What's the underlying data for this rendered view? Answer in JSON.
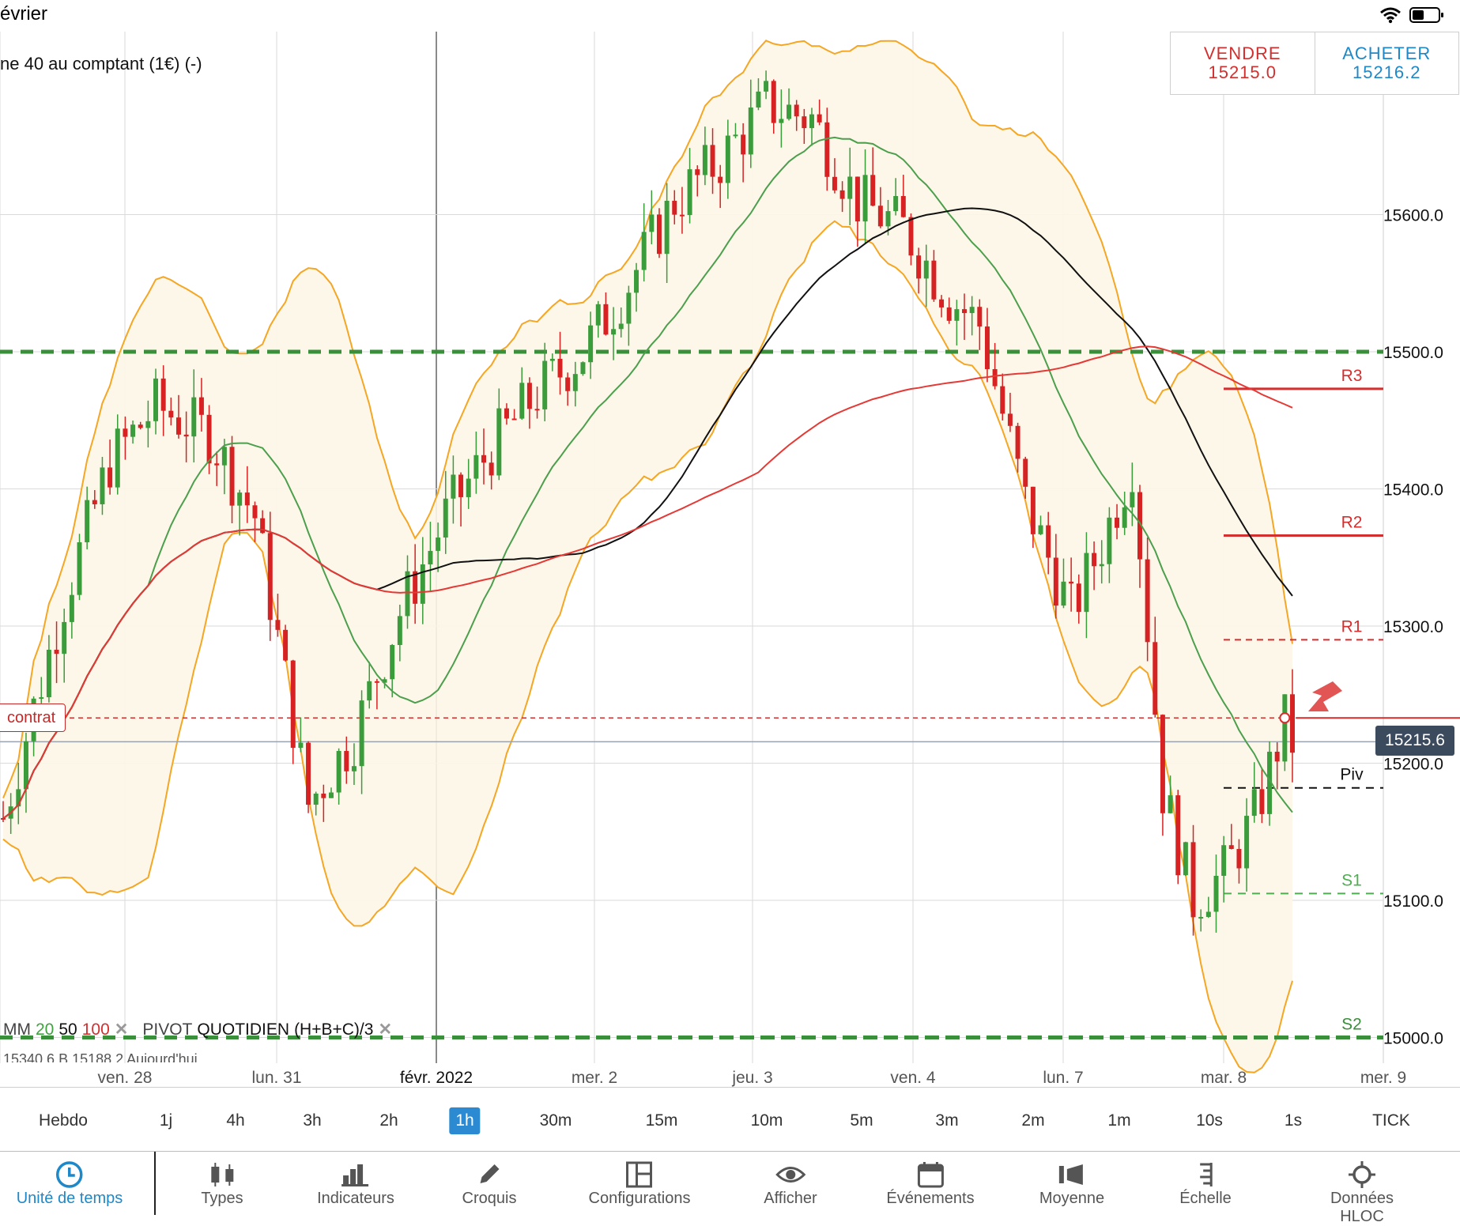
{
  "status_bar": {
    "title": "évrier"
  },
  "instrument": {
    "name": "ne 40 au comptant (1€) (-)"
  },
  "quote": {
    "sell_label": "VENDRE",
    "sell_price": "15215.0",
    "buy_label": "ACHETER",
    "buy_price": "15216.2"
  },
  "price_axis": {
    "labels": [
      "15600.0",
      "15500.0",
      "15400.0",
      "15300.0",
      "15200.0",
      "15100.0",
      "15000.0"
    ],
    "current_price": "15215.6"
  },
  "pivot_levels": [
    {
      "name": "R3",
      "value": 15473
    },
    {
      "name": "R2",
      "value": 15366
    },
    {
      "name": "R1",
      "value": 15290
    },
    {
      "name": "Piv",
      "value": 15182
    },
    {
      "name": "S1",
      "value": 15105
    },
    {
      "name": "S2",
      "value": 15000
    }
  ],
  "order_line": {
    "label": "contrat",
    "value": 15233
  },
  "legend": {
    "mm_label": "MM",
    "mm1": "20",
    "mm2": "50",
    "mm3": "100",
    "pivot_label": "PIVOT",
    "pivot_period": "QUOTIDIEN",
    "pivot_formula": "(H+B+C)/3",
    "sub_text": "15340.6   B 15188.2   Aujourd'hui"
  },
  "time_axis": [
    "ven. 28",
    "lun. 31",
    "févr. 2022",
    "mer. 2",
    "jeu. 3",
    "ven. 4",
    "lun. 7",
    "mar. 8",
    "mer. 9"
  ],
  "timeframes": {
    "items": [
      "Hebdo",
      "1j",
      "4h",
      "3h",
      "2h",
      "1h",
      "30m",
      "15m",
      "10m",
      "5m",
      "3m",
      "2m",
      "1m",
      "10s",
      "1s",
      "TICK"
    ],
    "active": "1h"
  },
  "toolbar": {
    "items": [
      {
        "label": "Unité de temps",
        "icon": "clock-icon"
      },
      {
        "label": "Types",
        "icon": "candles-icon"
      },
      {
        "label": "Indicateurs",
        "icon": "bars-icon"
      },
      {
        "label": "Croquis",
        "icon": "pencil-icon"
      },
      {
        "label": "Configurations",
        "icon": "layout-icon"
      },
      {
        "label": "Afficher",
        "icon": "eye-icon"
      },
      {
        "label": "Événements",
        "icon": "calendar-icon"
      },
      {
        "label": "Moyenne",
        "icon": "average-icon"
      },
      {
        "label": "Échelle",
        "icon": "scale-icon"
      },
      {
        "label": "Données HLOC",
        "icon": "crosshair-icon"
      }
    ]
  },
  "colors": {
    "up": "#3a9c3a",
    "down": "#d62222",
    "bollinger": "#f5a623",
    "ma20": "#4c9f4c",
    "ma50": "#111111",
    "ma100": "#e53935",
    "accent": "#1e88c8"
  },
  "chart_data": {
    "type": "candlestick",
    "y_range": [
      14980,
      15735
    ],
    "y_ticks": [
      15000,
      15100,
      15200,
      15300,
      15400,
      15500,
      15600
    ],
    "x_labels": [
      "ven. 28",
      "lun. 31",
      "févr. 2022",
      "mer. 2",
      "jeu. 3",
      "ven. 4",
      "lun. 7",
      "mar. 8",
      "mer. 9"
    ],
    "closes_approx": [
      15180,
      15300,
      15450,
      15500,
      15440,
      15330,
      15200,
      15340,
      15430,
      15500,
      15540,
      15610,
      15700,
      15690,
      15620,
      15580,
      15530,
      15490,
      15380,
      15310,
      15420,
      15430,
      15110,
      15090,
      15180,
      15140,
      15200,
      15230,
      15280,
      15216
    ],
    "last_price": 15215.6,
    "moving_averages": [
      "20",
      "50",
      "100"
    ]
  }
}
